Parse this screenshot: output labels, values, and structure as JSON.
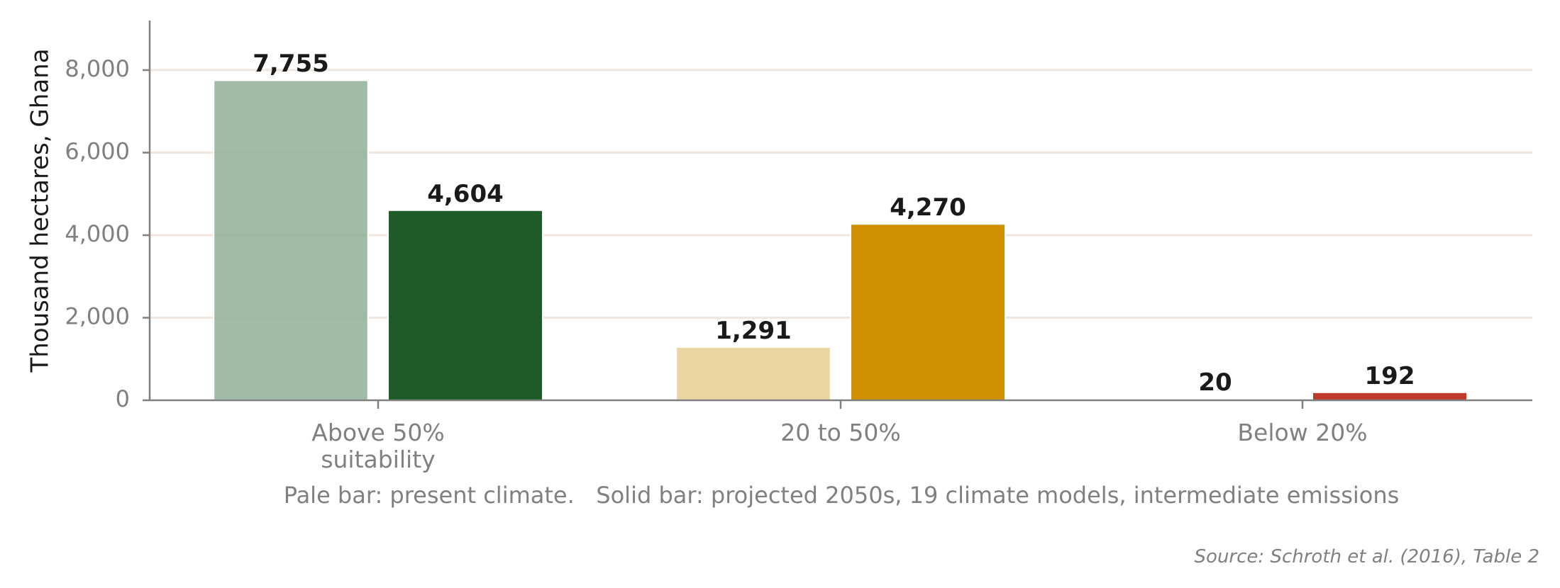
{
  "chart_data": {
    "type": "bar",
    "ylabel": "Thousand hectares, Ghana",
    "ylim": [
      0,
      9200
    ],
    "yticks": [
      0,
      2000,
      4000,
      6000,
      8000
    ],
    "ytick_labels": [
      "0",
      "2,000",
      "4,000",
      "6,000",
      "8,000"
    ],
    "grid": "horizontal",
    "categories": [
      "Above 50%\nsuitability",
      "20 to 50%",
      "Below 20%"
    ],
    "bars": [
      {
        "category": 0,
        "period": "present",
        "value": 7755,
        "label": "7,755",
        "color": "#8FAF96"
      },
      {
        "category": 0,
        "period": "2050s",
        "value": 4604,
        "label": "4,604",
        "color": "#1E5B28"
      },
      {
        "category": 1,
        "period": "present",
        "value": 1291,
        "label": "1,291",
        "color": "#E8CF92"
      },
      {
        "category": 1,
        "period": "2050s",
        "value": 4270,
        "label": "4,270",
        "color": "#D19000"
      },
      {
        "category": 2,
        "period": "present",
        "value": 20,
        "label": "20",
        "color": "#E3A49C"
      },
      {
        "category": 2,
        "period": "2050s",
        "value": 192,
        "label": "192",
        "color": "#C0392B"
      }
    ],
    "note": "Pale bar: present climate.   Solid bar: projected 2050s, 19 climate models, intermediate emissions",
    "source": "Source: Schroth et al. (2016), Table 2"
  },
  "colors": {
    "axis": "#808080",
    "grid": "#EFE6E0",
    "text": "#1a1a1a",
    "muted": "#808080"
  }
}
